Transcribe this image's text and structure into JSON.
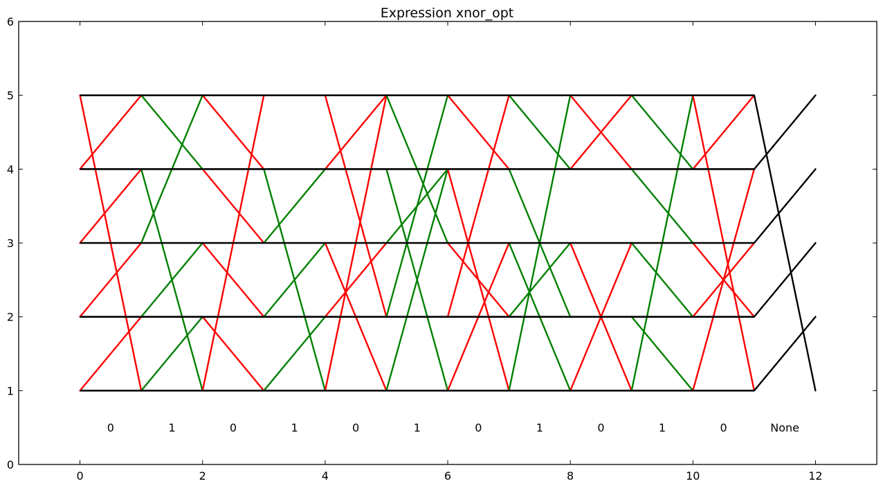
{
  "chart_data": {
    "type": "line",
    "title": "Expression xnor_opt",
    "xlim": [
      -1,
      13
    ],
    "ylim": [
      0,
      6
    ],
    "xticks": [
      0,
      2,
      4,
      6,
      8,
      10,
      12
    ],
    "yticks": [
      0,
      1,
      2,
      3,
      4,
      5,
      6
    ],
    "grid": false,
    "colors": {
      "red": "#ff0000",
      "green": "#008000",
      "black": "#000000"
    },
    "horizontal_levels": {
      "y": [
        1,
        2,
        3,
        4,
        5
      ],
      "x_range": [
        0,
        11
      ],
      "color": "black"
    },
    "segment_labels": [
      {
        "x": 0.5,
        "y": 0.5,
        "text": "0"
      },
      {
        "x": 1.5,
        "y": 0.5,
        "text": "1"
      },
      {
        "x": 2.5,
        "y": 0.5,
        "text": "0"
      },
      {
        "x": 3.5,
        "y": 0.5,
        "text": "1"
      },
      {
        "x": 4.5,
        "y": 0.5,
        "text": "0"
      },
      {
        "x": 5.5,
        "y": 0.5,
        "text": "1"
      },
      {
        "x": 6.5,
        "y": 0.5,
        "text": "0"
      },
      {
        "x": 7.5,
        "y": 0.5,
        "text": "1"
      },
      {
        "x": 8.5,
        "y": 0.5,
        "text": "0"
      },
      {
        "x": 9.5,
        "y": 0.5,
        "text": "1"
      },
      {
        "x": 10.5,
        "y": 0.5,
        "text": "0"
      },
      {
        "x": 11.5,
        "y": 0.5,
        "text": "None"
      }
    ],
    "transitions": [
      {
        "x": 0,
        "color": "red",
        "pairs": [
          [
            1,
            2
          ],
          [
            2,
            3
          ],
          [
            3,
            4
          ],
          [
            4,
            5
          ],
          [
            5,
            1
          ]
        ]
      },
      {
        "x": 1,
        "color": "green",
        "pairs": [
          [
            1,
            2
          ],
          [
            2,
            3
          ],
          [
            3,
            5
          ],
          [
            4,
            1
          ],
          [
            5,
            4
          ]
        ]
      },
      {
        "x": 2,
        "color": "red",
        "pairs": [
          [
            1,
            5
          ],
          [
            2,
            1
          ],
          [
            3,
            2
          ],
          [
            4,
            3
          ],
          [
            5,
            4
          ]
        ]
      },
      {
        "x": 3,
        "color": "green",
        "pairs": [
          [
            1,
            2
          ],
          [
            2,
            3
          ],
          [
            3,
            4
          ],
          [
            4,
            1
          ],
          [
            5,
            5
          ]
        ]
      },
      {
        "x": 4,
        "color": "red",
        "pairs": [
          [
            1,
            5
          ],
          [
            2,
            3
          ],
          [
            3,
            1
          ],
          [
            4,
            5
          ],
          [
            5,
            2
          ]
        ]
      },
      {
        "x": 5,
        "color": "green",
        "pairs": [
          [
            1,
            4
          ],
          [
            2,
            5
          ],
          [
            3,
            4
          ],
          [
            4,
            1
          ],
          [
            5,
            3
          ]
        ]
      },
      {
        "x": 6,
        "color": "red",
        "pairs": [
          [
            1,
            3
          ],
          [
            2,
            5
          ],
          [
            3,
            2
          ],
          [
            4,
            1
          ],
          [
            5,
            4
          ]
        ]
      },
      {
        "x": 7,
        "color": "green",
        "pairs": [
          [
            1,
            5
          ],
          [
            2,
            3
          ],
          [
            3,
            1
          ],
          [
            4,
            2
          ],
          [
            5,
            4
          ]
        ]
      },
      {
        "x": 8,
        "color": "red",
        "pairs": [
          [
            1,
            3
          ],
          [
            2,
            2
          ],
          [
            3,
            1
          ],
          [
            4,
            5
          ],
          [
            5,
            4
          ]
        ]
      },
      {
        "x": 9,
        "color": "green",
        "pairs": [
          [
            1,
            5
          ],
          [
            2,
            1
          ],
          [
            3,
            2
          ],
          [
            4,
            3
          ],
          [
            5,
            4
          ]
        ]
      },
      {
        "x": 10,
        "color": "red",
        "pairs": [
          [
            1,
            4
          ],
          [
            2,
            3
          ],
          [
            3,
            2
          ],
          [
            4,
            5
          ],
          [
            5,
            1
          ]
        ]
      },
      {
        "x": 11,
        "color": "black",
        "pairs": [
          [
            1,
            2
          ],
          [
            2,
            3
          ],
          [
            3,
            4
          ],
          [
            4,
            5
          ],
          [
            5,
            1
          ]
        ]
      }
    ]
  }
}
